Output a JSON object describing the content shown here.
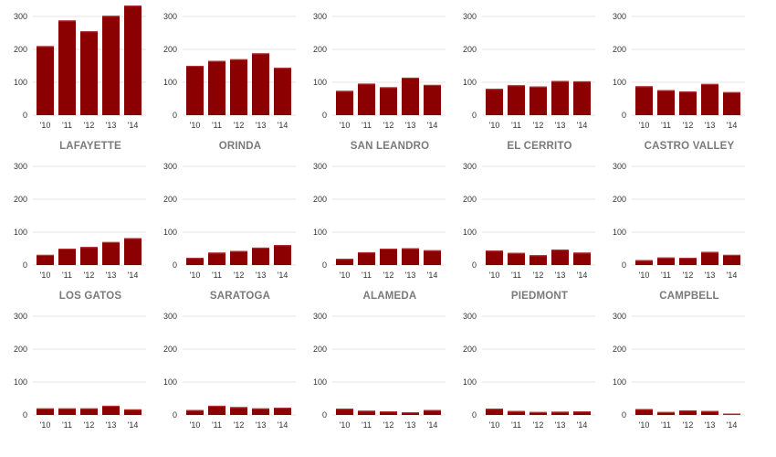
{
  "chart_data": [
    {
      "type": "bar",
      "title": "LAFAYETTE",
      "categories": [
        "'10",
        "'11",
        "'12",
        "'13",
        "'14"
      ],
      "values": [
        210,
        288,
        255,
        302,
        333
      ],
      "ylim": [
        0,
        300
      ],
      "yticks": [
        "0",
        "100",
        "200",
        "300"
      ]
    },
    {
      "type": "bar",
      "title": "ORINDA",
      "categories": [
        "'10",
        "'11",
        "'12",
        "'13",
        "'14"
      ],
      "values": [
        150,
        165,
        170,
        188,
        144
      ],
      "ylim": [
        0,
        300
      ],
      "yticks": [
        "0",
        "100",
        "200",
        "300"
      ]
    },
    {
      "type": "bar",
      "title": "SAN LEANDRO",
      "categories": [
        "'10",
        "'11",
        "'12",
        "'13",
        "'14"
      ],
      "values": [
        74,
        96,
        85,
        114,
        92
      ],
      "ylim": [
        0,
        300
      ],
      "yticks": [
        "0",
        "100",
        "200",
        "300"
      ]
    },
    {
      "type": "bar",
      "title": "EL CERRITO",
      "categories": [
        "'10",
        "'11",
        "'12",
        "'13",
        "'14"
      ],
      "values": [
        80,
        91,
        87,
        104,
        103
      ],
      "ylim": [
        0,
        300
      ],
      "yticks": [
        "0",
        "100",
        "200",
        "300"
      ]
    },
    {
      "type": "bar",
      "title": "CASTRO VALLEY",
      "categories": [
        "'10",
        "'11",
        "'12",
        "'13",
        "'14"
      ],
      "values": [
        88,
        76,
        72,
        95,
        70
      ],
      "ylim": [
        0,
        300
      ],
      "yticks": [
        "0",
        "100",
        "200",
        "300"
      ]
    },
    {
      "type": "bar",
      "title": "LOS GATOS",
      "categories": [
        "'10",
        "'11",
        "'12",
        "'13",
        "'14"
      ],
      "values": [
        31,
        50,
        55,
        70,
        82
      ],
      "ylim": [
        0,
        300
      ],
      "yticks": [
        "0",
        "100",
        "200",
        "300"
      ]
    },
    {
      "type": "bar",
      "title": "SARATOGA",
      "categories": [
        "'10",
        "'11",
        "'12",
        "'13",
        "'14"
      ],
      "values": [
        22,
        38,
        43,
        53,
        61
      ],
      "ylim": [
        0,
        300
      ],
      "yticks": [
        "0",
        "100",
        "200",
        "300"
      ]
    },
    {
      "type": "bar",
      "title": "ALAMEDA",
      "categories": [
        "'10",
        "'11",
        "'12",
        "'13",
        "'14"
      ],
      "values": [
        19,
        39,
        50,
        51,
        45
      ],
      "ylim": [
        0,
        300
      ],
      "yticks": [
        "0",
        "100",
        "200",
        "300"
      ]
    },
    {
      "type": "bar",
      "title": "PIEDMONT",
      "categories": [
        "'10",
        "'11",
        "'12",
        "'13",
        "'14"
      ],
      "values": [
        44,
        37,
        30,
        47,
        38
      ],
      "ylim": [
        0,
        300
      ],
      "yticks": [
        "0",
        "100",
        "200",
        "300"
      ]
    },
    {
      "type": "bar",
      "title": "CAMPBELL",
      "categories": [
        "'10",
        "'11",
        "'12",
        "'13",
        "'14"
      ],
      "values": [
        15,
        23,
        22,
        40,
        31
      ],
      "ylim": [
        0,
        300
      ],
      "yticks": [
        "0",
        "100",
        "200",
        "300"
      ]
    },
    {
      "type": "bar",
      "title": "",
      "categories": [
        "'10",
        "'11",
        "'12",
        "'13",
        "'14"
      ],
      "values": [
        20,
        20,
        20,
        28,
        17
      ],
      "ylim": [
        0,
        300
      ],
      "yticks": [
        "0",
        "100",
        "200",
        "300"
      ]
    },
    {
      "type": "bar",
      "title": "",
      "categories": [
        "'10",
        "'11",
        "'12",
        "'13",
        "'14"
      ],
      "values": [
        15,
        28,
        24,
        20,
        22
      ],
      "ylim": [
        0,
        300
      ],
      "yticks": [
        "0",
        "100",
        "200",
        "300"
      ]
    },
    {
      "type": "bar",
      "title": "",
      "categories": [
        "'10",
        "'11",
        "'12",
        "'13",
        "'14"
      ],
      "values": [
        19,
        13,
        11,
        8,
        15
      ],
      "ylim": [
        0,
        300
      ],
      "yticks": [
        "0",
        "100",
        "200",
        "300"
      ]
    },
    {
      "type": "bar",
      "title": "",
      "categories": [
        "'10",
        "'11",
        "'12",
        "'13",
        "'14"
      ],
      "values": [
        19,
        12,
        9,
        10,
        11
      ],
      "ylim": [
        0,
        300
      ],
      "yticks": [
        "0",
        "100",
        "200",
        "300"
      ]
    },
    {
      "type": "bar",
      "title": "",
      "categories": [
        "'10",
        "'11",
        "'12",
        "'13",
        "'14"
      ],
      "values": [
        18,
        9,
        14,
        12,
        4
      ],
      "ylim": [
        0,
        300
      ],
      "yticks": [
        "0",
        "100",
        "200",
        "300"
      ]
    }
  ]
}
